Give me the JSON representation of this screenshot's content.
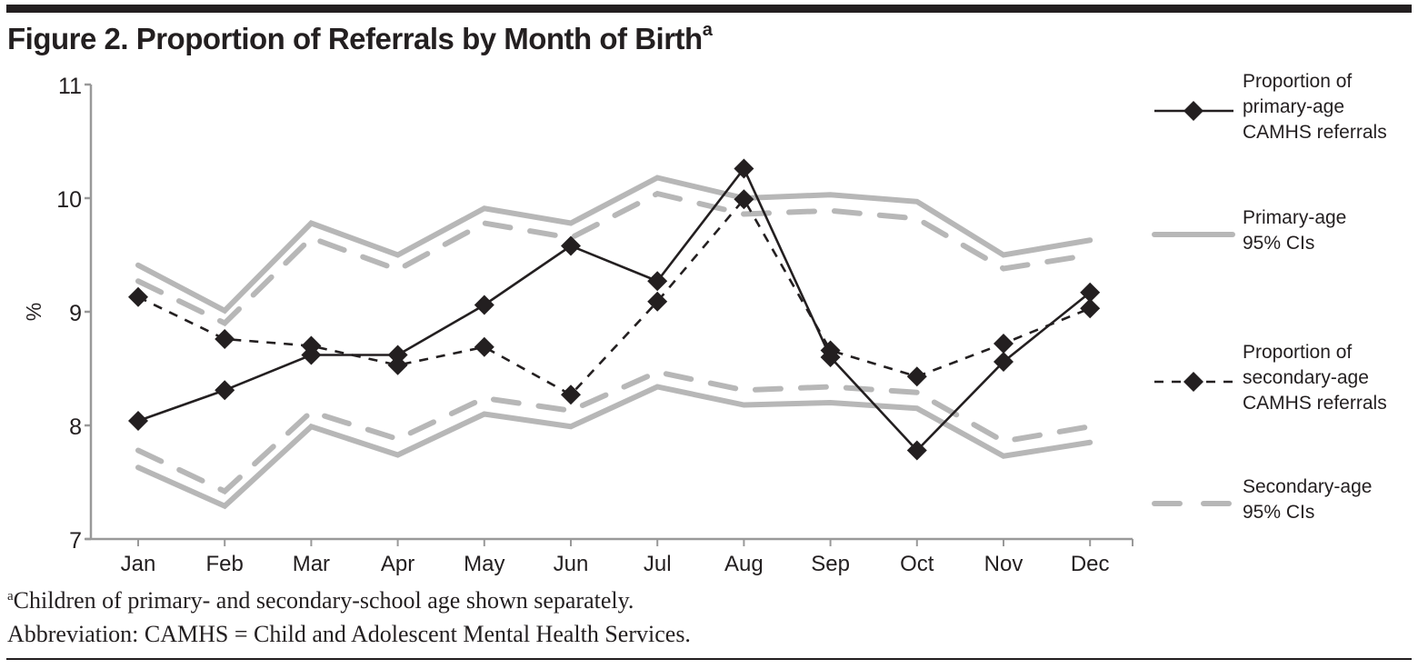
{
  "figure": {
    "title": "Figure 2. Proportion of Referrals by Month of Birth",
    "title_superscript": "a"
  },
  "footnotes": {
    "note_marker": "a",
    "note": "Children of primary- and secondary-school age shown separately.",
    "abbreviation": "Abbreviation: CAMHS = Child and Adolescent Mental Health Services."
  },
  "colors": {
    "ink": "#231f20",
    "ci_gray": "#b7b7b7",
    "axis_gray": "#999999"
  },
  "chart_data": {
    "type": "line",
    "title": "Figure 2. Proportion of Referrals by Month of Birth",
    "xlabel": "",
    "ylabel": "%",
    "ylim": [
      7,
      11
    ],
    "yticks": [
      "7",
      "8",
      "9",
      "10",
      "11"
    ],
    "categories": [
      "Jan",
      "Feb",
      "Mar",
      "Apr",
      "May",
      "Jun",
      "Jul",
      "Aug",
      "Sep",
      "Oct",
      "Nov",
      "Dec"
    ],
    "grid": false,
    "legend_position": "right",
    "series": [
      {
        "name": "Proportion of primary-age CAMHS referrals",
        "legend_lines": [
          "Proportion of",
          "primary-age",
          "CAMHS referrals"
        ],
        "style": "solid-black-diamond",
        "values": [
          8.04,
          8.31,
          8.62,
          8.62,
          9.06,
          9.58,
          9.27,
          10.26,
          8.6,
          7.78,
          8.56,
          9.17
        ]
      },
      {
        "name": "Primary-age 95% CIs",
        "legend_lines": [
          "Primary-age",
          "95% CIs"
        ],
        "style": "solid-gray",
        "upper": [
          9.41,
          9.01,
          9.78,
          9.5,
          9.91,
          9.78,
          10.18,
          10.0,
          10.03,
          9.97,
          9.5,
          9.63
        ],
        "lower": [
          7.63,
          7.29,
          7.99,
          7.74,
          8.1,
          7.99,
          8.34,
          8.18,
          8.2,
          8.15,
          7.73,
          7.85
        ]
      },
      {
        "name": "Proportion of secondary-age CAMHS referrals",
        "legend_lines": [
          "Proportion of",
          "secondary-age",
          "CAMHS referrals"
        ],
        "style": "dashed-black-diamond",
        "values": [
          9.13,
          8.76,
          8.7,
          8.53,
          8.69,
          8.27,
          9.09,
          9.99,
          8.66,
          8.43,
          8.72,
          9.03
        ]
      },
      {
        "name": "Secondary-age 95% CIs",
        "legend_lines": [
          "Secondary-age",
          "95% CIs"
        ],
        "style": "dashed-gray",
        "upper": [
          9.27,
          8.9,
          9.65,
          9.37,
          9.78,
          9.65,
          10.04,
          9.86,
          9.89,
          9.82,
          9.38,
          9.5
        ],
        "lower": [
          7.78,
          7.42,
          8.12,
          7.88,
          8.24,
          8.13,
          8.47,
          8.31,
          8.34,
          8.29,
          7.86,
          7.99
        ]
      }
    ]
  }
}
